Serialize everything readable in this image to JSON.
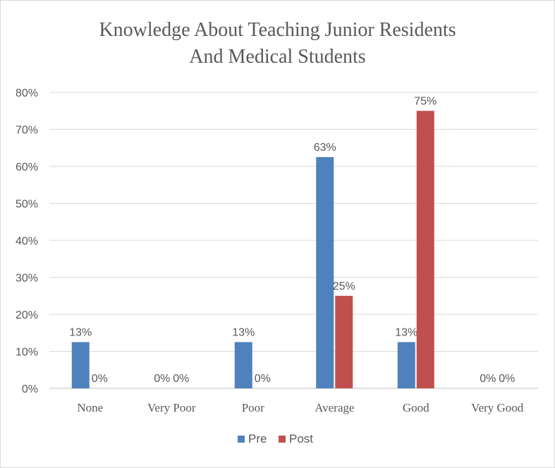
{
  "chart_data": {
    "type": "bar",
    "title_lines": [
      "Knowledge About Teaching Junior Residents",
      "And Medical Students"
    ],
    "categories": [
      "None",
      "Very Poor",
      "Poor",
      "Average",
      "Good",
      "Very Good"
    ],
    "series": [
      {
        "name": "Pre",
        "color": "#4f81bd",
        "values": [
          0.125,
          0,
          0.125,
          0.625,
          0.125,
          0
        ],
        "labels": [
          "13%",
          "0%",
          "13%",
          "63%",
          "13%",
          "0%"
        ]
      },
      {
        "name": "Post",
        "color": "#c0504d",
        "values": [
          0,
          0,
          0,
          0.25,
          0.75,
          0
        ],
        "labels": [
          "0%",
          "0%",
          "0%",
          "25%",
          "75%",
          "0%"
        ]
      }
    ],
    "ylim": [
      0,
      0.8
    ],
    "yticks": [
      "0%",
      "10%",
      "20%",
      "30%",
      "40%",
      "50%",
      "60%",
      "70%",
      "80%"
    ],
    "grid": true,
    "legend": "bottom",
    "xlabel": "",
    "ylabel": ""
  }
}
